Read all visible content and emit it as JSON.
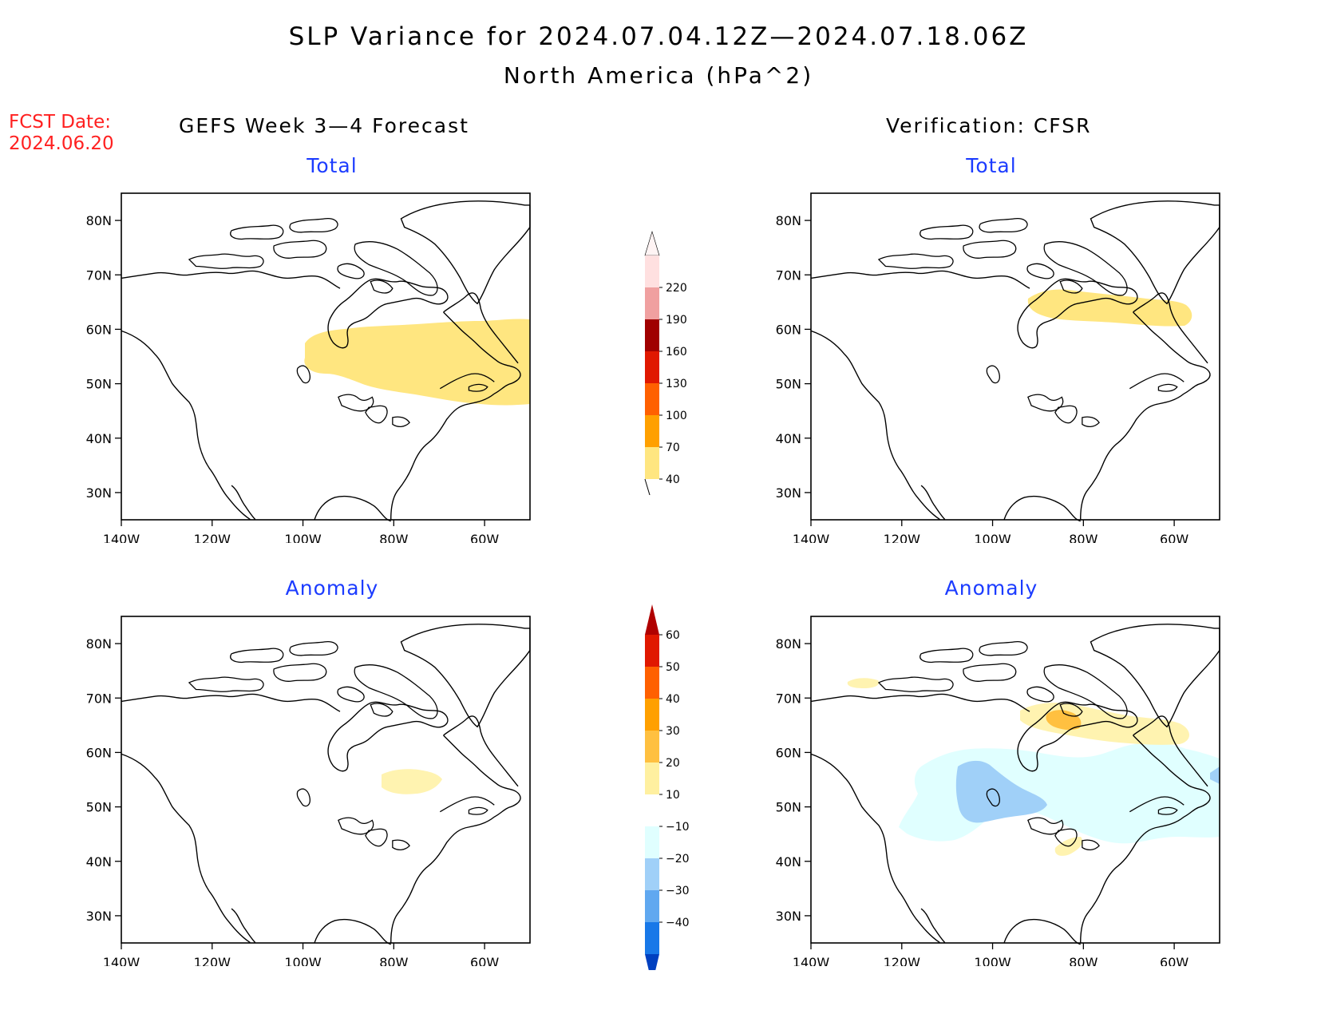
{
  "figure": {
    "title": "SLP Variance for 2024.07.04.12Z—2024.07.18.06Z",
    "subtitle": "North America (hPa^2)",
    "fcst_label": "FCST Date:",
    "fcst_value": "2024.06.20"
  },
  "columns": {
    "left": "GEFS Week 3—4 Forecast",
    "right": "Verification: CFSR"
  },
  "panels": [
    {
      "id": "gefs-total",
      "title": "Total"
    },
    {
      "id": "cfsr-total",
      "title": "Total"
    },
    {
      "id": "gefs-anomaly",
      "title": "Anomaly"
    },
    {
      "id": "cfsr-anomaly",
      "title": "Anomaly"
    }
  ],
  "map_axes": {
    "lon_ticks": [
      "140W",
      "120W",
      "100W",
      "80W",
      "60W"
    ],
    "lat_ticks": [
      "80N",
      "70N",
      "60N",
      "50N",
      "40N",
      "30N"
    ],
    "lon_range": [
      -140,
      -50
    ],
    "lat_range": [
      25,
      85
    ]
  },
  "colorbars": {
    "total": {
      "labels": [
        "40",
        "70",
        "100",
        "130",
        "160",
        "190",
        "220"
      ],
      "colors": [
        "#ffe680",
        "#ffa000",
        "#ff6000",
        "#e01800",
        "#a00000",
        "#f0a0a0",
        "#ffe0e0"
      ]
    },
    "anomaly": {
      "labels": [
        "60",
        "50",
        "40",
        "30",
        "20",
        "10",
        "−10",
        "−20",
        "−30",
        "−40"
      ],
      "colors": [
        "#b00000",
        "#e01800",
        "#ff6000",
        "#ffa000",
        "#ffc040",
        "#fff0a0",
        "#ffffff",
        "#e0ffff",
        "#a0d0f8",
        "#60a8f0",
        "#1878e8",
        "#0040c0"
      ]
    }
  },
  "colors": {
    "title_text": "#000000",
    "fcst_text": "#ff2020",
    "panel_title_text": "#1c3cff",
    "map_fill_low_positive": "#ffe680",
    "map_fill_positive_light": "#fff3b0",
    "map_fill_orange": "#ffc040",
    "map_fill_negative_light": "#e0ffff",
    "map_fill_negative": "#a0d0f8"
  }
}
